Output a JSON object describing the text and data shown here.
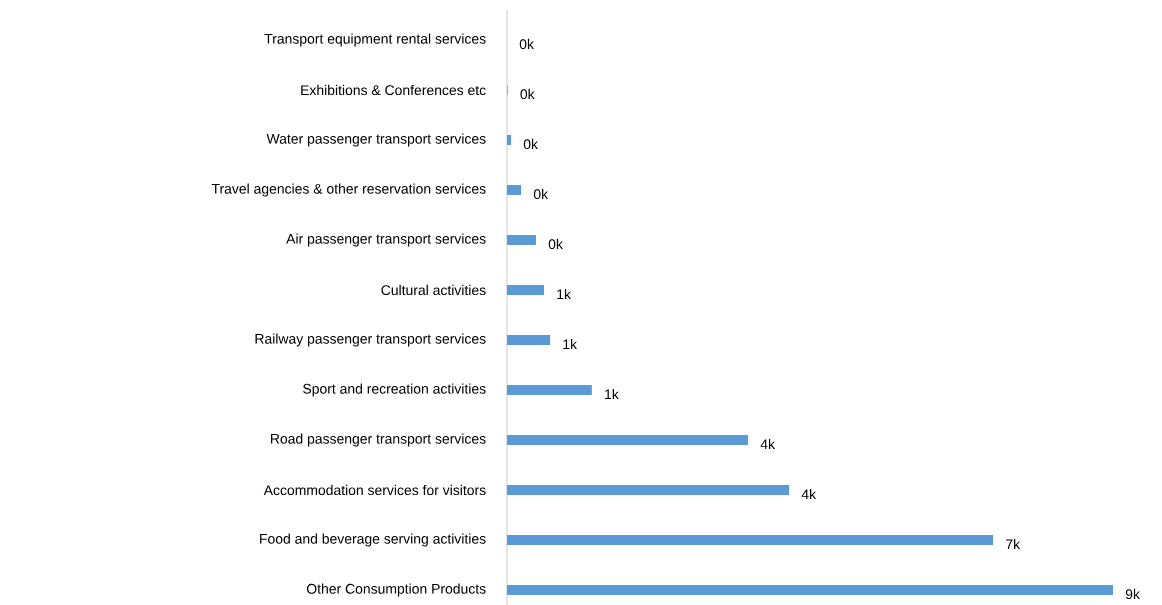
{
  "chart_data": {
    "type": "bar",
    "orientation": "horizontal",
    "color": "#5b9bd5",
    "tick_labels": "y",
    "categories": [
      "Transport equipment rental services",
      "Exhibitions & Conferences etc",
      "Water passenger transport services",
      "Travel agencies & other reservation services",
      "Air passenger transport services",
      "Cultural activities",
      "Railway passenger transport services",
      "Sport and recreation activities",
      "Road passenger transport services",
      "Accommodation services for visitors",
      "Food and beverage serving activities",
      "Other Consumption Products"
    ],
    "values": [
      0,
      0.01,
      0.06,
      0.21,
      0.43,
      0.55,
      0.64,
      1.26,
      3.58,
      4.19,
      7.22,
      9.0
    ],
    "value_labels": [
      "0k",
      "0k",
      "0k",
      "0k",
      "0k",
      "1k",
      "1k",
      "1k",
      "4k",
      "4k",
      "7k",
      "9k"
    ]
  }
}
